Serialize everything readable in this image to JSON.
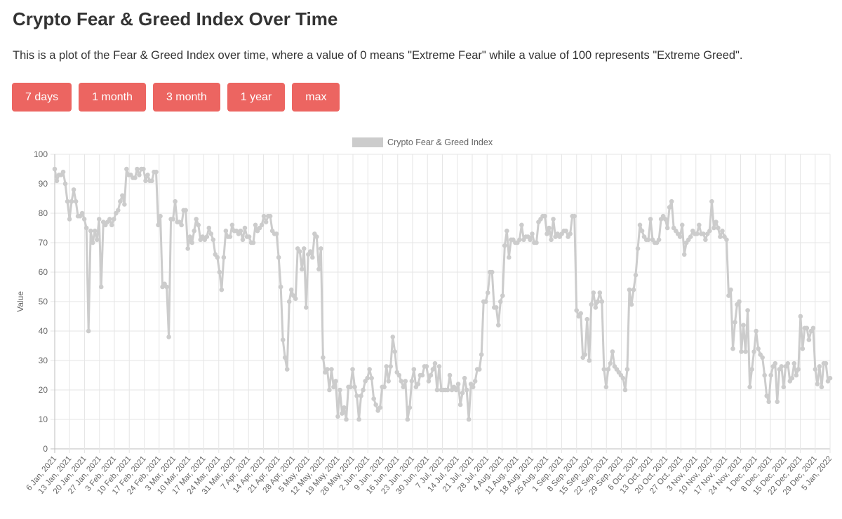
{
  "page": {
    "title": "Crypto Fear & Greed Index Over Time",
    "description": "This is a plot of the Fear & Greed Index over time, where a value of 0 means \"Extreme Fear\" while a value of 100 represents \"Extreme Greed\"."
  },
  "range_buttons": [
    "7 days",
    "1 month",
    "3 month",
    "1 year",
    "max"
  ],
  "colors": {
    "button_bg": "#ec6561",
    "series_line": "#cccccc",
    "grid": "#e6e6e6",
    "text": "#333333"
  },
  "chart_data": {
    "type": "line",
    "title": "",
    "xlabel": "",
    "ylabel": "Value",
    "ylim": [
      0,
      100
    ],
    "yticks": [
      0,
      10,
      20,
      30,
      40,
      50,
      60,
      70,
      80,
      90,
      100
    ],
    "grid": true,
    "legend_position": "top-center",
    "xticks": [
      "6 Jan, 2021",
      "13 Jan, 2021",
      "20 Jan, 2021",
      "27 Jan, 2021",
      "3 Feb, 2021",
      "10 Feb, 2021",
      "17 Feb, 2021",
      "24 Feb, 2021",
      "3 Mar, 2021",
      "10 Mar, 2021",
      "17 Mar, 2021",
      "24 Mar, 2021",
      "31 Mar, 2021",
      "7 Apr, 2021",
      "14 Apr, 2021",
      "21 Apr, 2021",
      "28 Apr, 2021",
      "5 May, 2021",
      "12 May, 2021",
      "19 May, 2021",
      "26 May, 2021",
      "2 Jun, 2021",
      "9 Jun, 2021",
      "16 Jun, 2021",
      "23 Jun, 2021",
      "30 Jun, 2021",
      "7 Jul, 2021",
      "14 Jul, 2021",
      "21 Jul, 2021",
      "28 Jul, 2021",
      "4 Aug, 2021",
      "11 Aug, 2021",
      "18 Aug, 2021",
      "25 Aug, 2021",
      "1 Sep, 2021",
      "8 Sep, 2021",
      "15 Sep, 2021",
      "22 Sep, 2021",
      "29 Sep, 2021",
      "6 Oct, 2021",
      "13 Oct, 2021",
      "20 Oct, 2021",
      "27 Oct, 2021",
      "3 Nov, 2021",
      "10 Nov, 2021",
      "17 Nov, 2021",
      "24 Nov, 2021",
      "1 Dec, 2021",
      "8 Dec, 2021",
      "15 Dec, 2021",
      "22 Dec, 2021",
      "29 Dec, 2021",
      "5 Jan, 2022"
    ],
    "series": [
      {
        "name": "Crypto Fear & Greed Index",
        "color": "#cccccc",
        "values": [
          95,
          91,
          93,
          93,
          94,
          90,
          84,
          78,
          84,
          88,
          84,
          79,
          79,
          80,
          78,
          75,
          40,
          74,
          70,
          74,
          71,
          78,
          55,
          77,
          76,
          77,
          78,
          76,
          78,
          80,
          81,
          84,
          86,
          83,
          95,
          93,
          93,
          92,
          92,
          95,
          93,
          95,
          95,
          91,
          93,
          91,
          91,
          94,
          94,
          76,
          79,
          55,
          56,
          55,
          38,
          78,
          78,
          84,
          77,
          77,
          76,
          81,
          81,
          68,
          72,
          70,
          74,
          78,
          76,
          71,
          72,
          71,
          72,
          75,
          73,
          71,
          66,
          65,
          60,
          54,
          65,
          74,
          72,
          72,
          76,
          74,
          74,
          73,
          74,
          71,
          75,
          72,
          72,
          70,
          70,
          76,
          74,
          75,
          76,
          79,
          77,
          79,
          79,
          74,
          73,
          73,
          65,
          55,
          37,
          31,
          27,
          50,
          54,
          52,
          51,
          68,
          67,
          61,
          68,
          48,
          66,
          67,
          65,
          73,
          72,
          61,
          68,
          31,
          26,
          27,
          20,
          27,
          21,
          23,
          11,
          20,
          12,
          14,
          10,
          21,
          21,
          27,
          21,
          18,
          10,
          18,
          20,
          23,
          24,
          27,
          24,
          17,
          15,
          13,
          14,
          21,
          21,
          28,
          23,
          28,
          38,
          33,
          26,
          25,
          23,
          21,
          23,
          10,
          14,
          23,
          27,
          21,
          22,
          25,
          25,
          28,
          28,
          23,
          25,
          27,
          29,
          20,
          28,
          20,
          20,
          20,
          20,
          25,
          20,
          21,
          20,
          22,
          15,
          19,
          24,
          20,
          10,
          22,
          21,
          23,
          27,
          27,
          32,
          50,
          50,
          53,
          60,
          60,
          48,
          48,
          42,
          50,
          52,
          69,
          74,
          65,
          71,
          71,
          70,
          70,
          71,
          76,
          71,
          72,
          72,
          71,
          73,
          70,
          70,
          77,
          78,
          79,
          79,
          73,
          75,
          71,
          78,
          72,
          73,
          72,
          73,
          74,
          74,
          72,
          73,
          79,
          79,
          47,
          45,
          46,
          31,
          32,
          44,
          30,
          49,
          53,
          48,
          50,
          53,
          50,
          27,
          21,
          27,
          29,
          33,
          28,
          27,
          26,
          25,
          24,
          20,
          27,
          54,
          49,
          54,
          59,
          68,
          76,
          74,
          72,
          71,
          71,
          78,
          71,
          70,
          70,
          71,
          78,
          79,
          78,
          75,
          82,
          84,
          75,
          74,
          73,
          72,
          76,
          66,
          70,
          71,
          72,
          74,
          73,
          73,
          76,
          73,
          73,
          71,
          73,
          74,
          84,
          75,
          77,
          75,
          72,
          74,
          72,
          71,
          52,
          54,
          34,
          43,
          49,
          50,
          33,
          42,
          33,
          47,
          21,
          27,
          33,
          40,
          34,
          32,
          31,
          25,
          18,
          16,
          25,
          28,
          29,
          16,
          27,
          28,
          21,
          28,
          29,
          23,
          24,
          29,
          25,
          27,
          45,
          34,
          41,
          41,
          37,
          40,
          41,
          27,
          22,
          28,
          21,
          29,
          29,
          23,
          24
        ]
      }
    ]
  }
}
